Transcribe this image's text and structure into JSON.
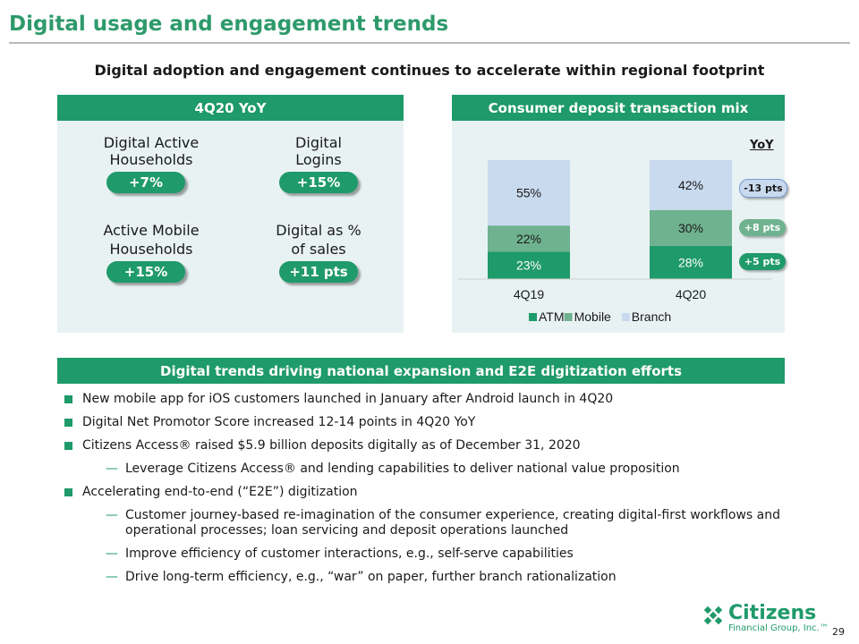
{
  "title": "Digital usage and engagement trends",
  "subtitle": "Digital adoption and engagement continues to accelerate within regional footprint",
  "left_panel": {
    "header": "4Q20 YoY",
    "kpis": [
      {
        "label_l1": "Digital Active",
        "label_l2": "Households",
        "value": "+7%"
      },
      {
        "label_l1": "Digital",
        "label_l2": "Logins",
        "value": "+15%"
      },
      {
        "label_l1": "Active Mobile",
        "label_l2": "Households",
        "value": "+15%"
      },
      {
        "label_l1": "Digital as %",
        "label_l2": "of sales",
        "value": "+11 pts"
      }
    ]
  },
  "right_panel": {
    "header": "Consumer deposit transaction mix",
    "yoy_label": "YoY",
    "yoy_changes": [
      {
        "text": "-13 pts",
        "series": "Branch"
      },
      {
        "text": "+8 pts",
        "series": "Mobile"
      },
      {
        "text": "+5 pts",
        "series": "ATM"
      }
    ]
  },
  "chart_data": {
    "type": "bar",
    "stacked": true,
    "categories": [
      "4Q19",
      "4Q20"
    ],
    "series": [
      {
        "name": "ATM",
        "values": [
          23,
          28
        ],
        "labels": [
          "23%",
          "28%"
        ],
        "color": "#1f9a6a"
      },
      {
        "name": "Mobile",
        "values": [
          22,
          30
        ],
        "labels": [
          "22%",
          "30%"
        ],
        "color": "#6fb28f"
      },
      {
        "name": "Branch",
        "values": [
          55,
          42
        ],
        "labels": [
          "55%",
          "42%"
        ],
        "color": "#c9d9ee"
      }
    ],
    "ylim": [
      0,
      100
    ],
    "legend_position": "bottom",
    "grid": false
  },
  "bottom_panel": {
    "header": "Digital trends driving national expansion and E2E digitization efforts",
    "b1": "New mobile app for iOS customers launched in January after Android launch in 4Q20",
    "b2": "Digital Net Promotor Score increased 12-14 points in 4Q20 YoY",
    "b3": "Citizens Access® raised $5.9 billion deposits digitally as of December 31, 2020",
    "b3_s1": "Leverage Citizens Access® and lending capabilities to deliver national value proposition",
    "b4": "Accelerating end-to-end (“E2E”) digitization",
    "b4_s1": "Customer journey-based re-imagination of the consumer experience, creating digital-first workflows and operational processes; loan servicing and deposit operations launched",
    "b4_s2": "Improve efficiency of customer interactions, e.g., self-serve capabilities",
    "b4_s3": "Drive long-term efficiency, e.g., “war” on paper, further branch rationalization",
    "dash": "—"
  },
  "footer": {
    "logo_name": "Citizens",
    "logo_sub": "Financial Group, Inc.™",
    "page": "29"
  },
  "colors": {
    "brand": "#1f9a6a",
    "title": "#2e9a6b",
    "panel_bg": "#e8f2f2"
  }
}
